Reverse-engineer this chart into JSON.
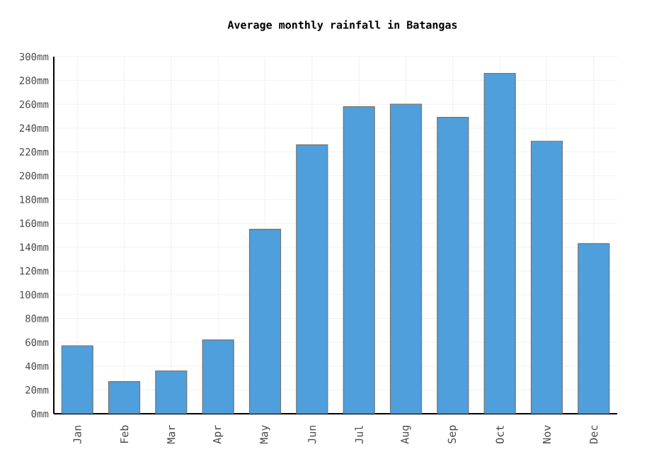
{
  "chart_data": {
    "type": "bar",
    "title": "Average monthly rainfall in Batangas",
    "categories": [
      "Jan",
      "Feb",
      "Mar",
      "Apr",
      "May",
      "Jun",
      "Jul",
      "Aug",
      "Sep",
      "Oct",
      "Nov",
      "Dec"
    ],
    "values": [
      57,
      27,
      36,
      62,
      155,
      226,
      258,
      260,
      249,
      286,
      229,
      143
    ],
    "color": "#4e9fdc",
    "ylim": [
      0,
      300
    ],
    "yticks": [
      {
        "value": 0,
        "label": "0mm"
      },
      {
        "value": 20,
        "label": "20mm"
      },
      {
        "value": 40,
        "label": "40mm"
      },
      {
        "value": 60,
        "label": "60mm"
      },
      {
        "value": 80,
        "label": "80mm"
      },
      {
        "value": 100,
        "label": "100mm"
      },
      {
        "value": 120,
        "label": "120mm"
      },
      {
        "value": 140,
        "label": "140mm"
      },
      {
        "value": 160,
        "label": "160mm"
      },
      {
        "value": 180,
        "label": "180mm"
      },
      {
        "value": 200,
        "label": "200mm"
      },
      {
        "value": 220,
        "label": "220mm"
      },
      {
        "value": 240,
        "label": "240mm"
      },
      {
        "value": 260,
        "label": "260mm"
      },
      {
        "value": 280,
        "label": "280mm"
      },
      {
        "value": 300,
        "label": "300mm"
      }
    ],
    "grid": true
  }
}
